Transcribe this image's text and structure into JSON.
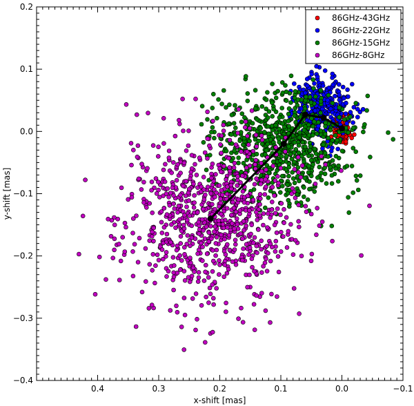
{
  "chart_data": {
    "type": "scatter",
    "title": "",
    "xlabel": "x-shift [mas]",
    "ylabel": "y-shift [mas]",
    "xlim": [
      0.5,
      -0.1
    ],
    "ylim": [
      -0.4,
      0.2
    ],
    "x_inverted": true,
    "xticks": [
      0.4,
      0.3,
      0.2,
      0.1,
      0.0,
      -0.1
    ],
    "xtick_labels": [
      "0.4",
      "0.3",
      "0.2",
      "0.1",
      "0.0",
      "−0.1"
    ],
    "yticks": [
      -0.4,
      -0.3,
      -0.2,
      -0.1,
      0.0,
      0.1,
      0.2
    ],
    "ytick_labels": [
      "−0.4",
      "−0.3",
      "−0.2",
      "−0.1",
      "0.0",
      "0.1",
      "0.2"
    ],
    "grid": false,
    "legend_position": "top-right",
    "series": [
      {
        "name": "86GHz-43GHz",
        "color": "#ff0000",
        "center": [
          0.0,
          0.005
        ],
        "spread": [
          0.008,
          0.014
        ],
        "count": 90,
        "seed": 11
      },
      {
        "name": "86GHz-22GHz",
        "color": "#0000ff",
        "center": [
          0.03,
          0.038
        ],
        "spread": [
          0.022,
          0.026
        ],
        "count": 330,
        "seed": 23
      },
      {
        "name": "86GHz-15GHz",
        "color": "#008000",
        "center": [
          0.095,
          -0.02
        ],
        "spread": [
          0.055,
          0.045
        ],
        "count": 720,
        "seed": 37
      },
      {
        "name": "86GHz-8GHz",
        "color": "#c000c0",
        "center": [
          0.215,
          -0.14
        ],
        "spread": [
          0.075,
          0.07
        ],
        "count": 900,
        "seed": 53
      }
    ],
    "centroid_path": {
      "color": "#000000",
      "points": [
        [
          0.0,
          0.005
        ],
        [
          0.03,
          0.022
        ],
        [
          0.06,
          0.027
        ],
        [
          0.095,
          -0.02
        ],
        [
          0.215,
          -0.14
        ]
      ]
    }
  }
}
